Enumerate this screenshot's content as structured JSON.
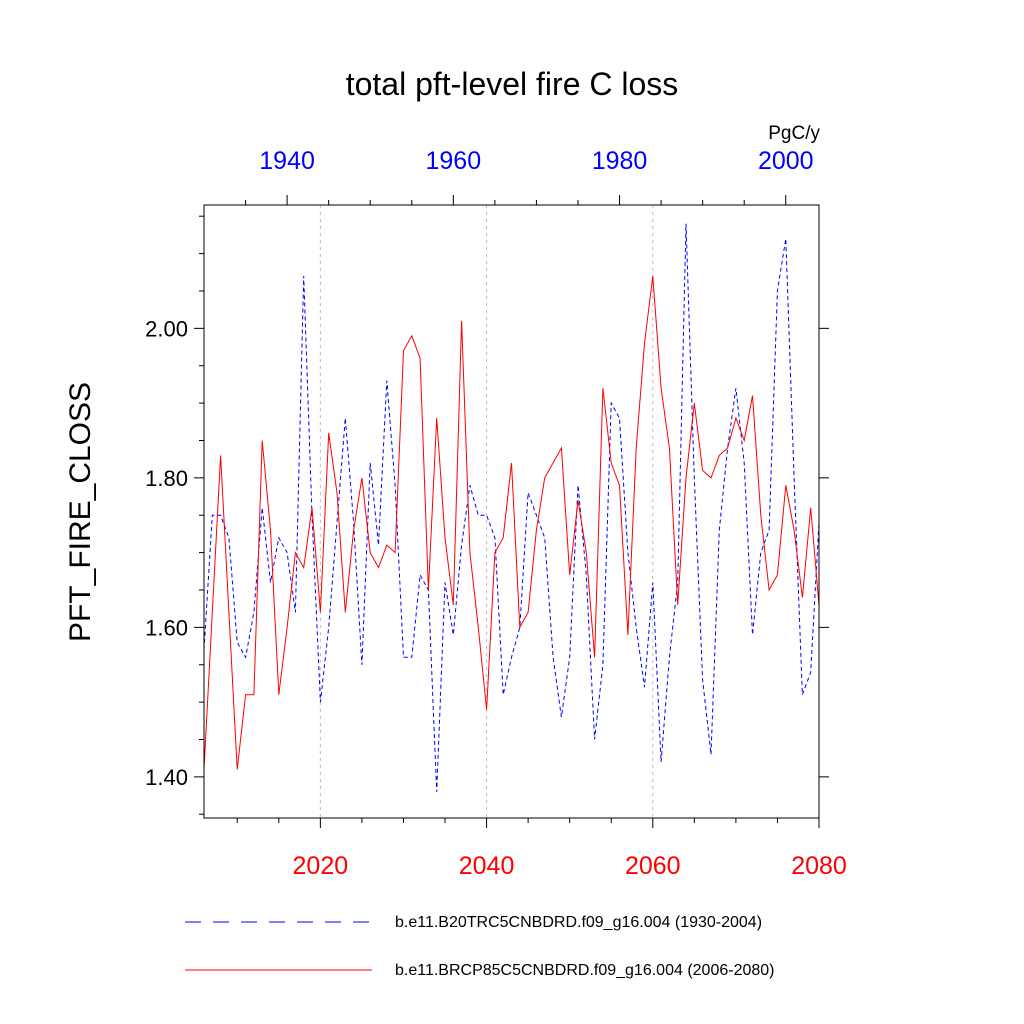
{
  "chart_data": {
    "type": "line",
    "title": "total pft-level fire C loss",
    "units": "PgC/y",
    "ylabel": "PFT_FIRE_CLOSS",
    "ylim": [
      1.345,
      2.165
    ],
    "yticks": [
      "1.40",
      "1.60",
      "1.80",
      "2.00"
    ],
    "top_axis": {
      "color": "#0000ff",
      "range": [
        1930,
        2004
      ],
      "ticks": [
        "1940",
        "1960",
        "1980",
        "2000"
      ]
    },
    "bottom_axis": {
      "color": "#ff0000",
      "range": [
        2006,
        2080
      ],
      "ticks": [
        "2020",
        "2040",
        "2060",
        "2080"
      ]
    },
    "gridlines_at": [
      2020,
      2040,
      2060
    ],
    "series": [
      {
        "name": "b.e11.B20TRC5CNBDRD.f09_g16.004 (1930-2004)",
        "color": "#0000ff",
        "style": "dashed",
        "x": [
          1930,
          1931,
          1932,
          1933,
          1934,
          1935,
          1936,
          1937,
          1938,
          1939,
          1940,
          1941,
          1942,
          1943,
          1944,
          1945,
          1946,
          1947,
          1948,
          1949,
          1950,
          1951,
          1952,
          1953,
          1954,
          1955,
          1956,
          1957,
          1958,
          1959,
          1960,
          1961,
          1962,
          1963,
          1964,
          1965,
          1966,
          1967,
          1968,
          1969,
          1970,
          1971,
          1972,
          1973,
          1974,
          1975,
          1976,
          1977,
          1978,
          1979,
          1980,
          1981,
          1982,
          1983,
          1984,
          1985,
          1986,
          1987,
          1988,
          1989,
          1990,
          1991,
          1992,
          1993,
          1994,
          1995,
          1996,
          1997,
          1998,
          1999,
          2000,
          2001,
          2002,
          2003,
          2004
        ],
        "values": [
          1.57,
          1.75,
          1.75,
          1.72,
          1.58,
          1.56,
          1.62,
          1.76,
          1.66,
          1.72,
          1.7,
          1.62,
          2.07,
          1.75,
          1.5,
          1.6,
          1.74,
          1.88,
          1.74,
          1.55,
          1.82,
          1.71,
          1.93,
          1.79,
          1.56,
          1.56,
          1.67,
          1.65,
          1.38,
          1.66,
          1.59,
          1.71,
          1.79,
          1.75,
          1.75,
          1.72,
          1.51,
          1.56,
          1.6,
          1.78,
          1.75,
          1.72,
          1.56,
          1.48,
          1.56,
          1.79,
          1.67,
          1.45,
          1.55,
          1.9,
          1.88,
          1.7,
          1.6,
          1.52,
          1.66,
          1.42,
          1.56,
          1.66,
          2.14,
          1.8,
          1.53,
          1.43,
          1.73,
          1.84,
          1.92,
          1.82,
          1.59,
          1.7,
          1.73,
          2.05,
          2.12,
          1.8,
          1.51,
          1.54,
          1.74
        ]
      },
      {
        "name": "b.e11.BRCP85C5CNBDRD.f09_g16.004 (2006-2080)",
        "color": "#ff0000",
        "style": "solid",
        "x": [
          2006,
          2007,
          2008,
          2009,
          2010,
          2011,
          2012,
          2013,
          2014,
          2015,
          2016,
          2017,
          2018,
          2019,
          2020,
          2021,
          2022,
          2023,
          2024,
          2025,
          2026,
          2027,
          2028,
          2029,
          2030,
          2031,
          2032,
          2033,
          2034,
          2035,
          2036,
          2037,
          2038,
          2039,
          2040,
          2041,
          2042,
          2043,
          2044,
          2045,
          2046,
          2047,
          2048,
          2049,
          2050,
          2051,
          2052,
          2053,
          2054,
          2055,
          2056,
          2057,
          2058,
          2059,
          2060,
          2061,
          2062,
          2063,
          2064,
          2065,
          2066,
          2067,
          2068,
          2069,
          2070,
          2071,
          2072,
          2073,
          2074,
          2075,
          2076,
          2077,
          2078,
          2079,
          2080
        ],
        "values": [
          1.41,
          1.62,
          1.83,
          1.62,
          1.41,
          1.51,
          1.51,
          1.85,
          1.73,
          1.51,
          1.6,
          1.7,
          1.68,
          1.76,
          1.62,
          1.86,
          1.78,
          1.62,
          1.73,
          1.8,
          1.7,
          1.68,
          1.71,
          1.7,
          1.97,
          1.99,
          1.96,
          1.65,
          1.88,
          1.72,
          1.63,
          2.01,
          1.7,
          1.6,
          1.49,
          1.7,
          1.72,
          1.82,
          1.6,
          1.62,
          1.73,
          1.8,
          1.82,
          1.84,
          1.67,
          1.77,
          1.7,
          1.56,
          1.92,
          1.82,
          1.79,
          1.59,
          1.84,
          1.98,
          2.07,
          1.92,
          1.84,
          1.63,
          1.8,
          1.9,
          1.81,
          1.8,
          1.83,
          1.84,
          1.88,
          1.85,
          1.91,
          1.75,
          1.65,
          1.67,
          1.79,
          1.73,
          1.64,
          1.76,
          1.63
        ]
      }
    ]
  }
}
